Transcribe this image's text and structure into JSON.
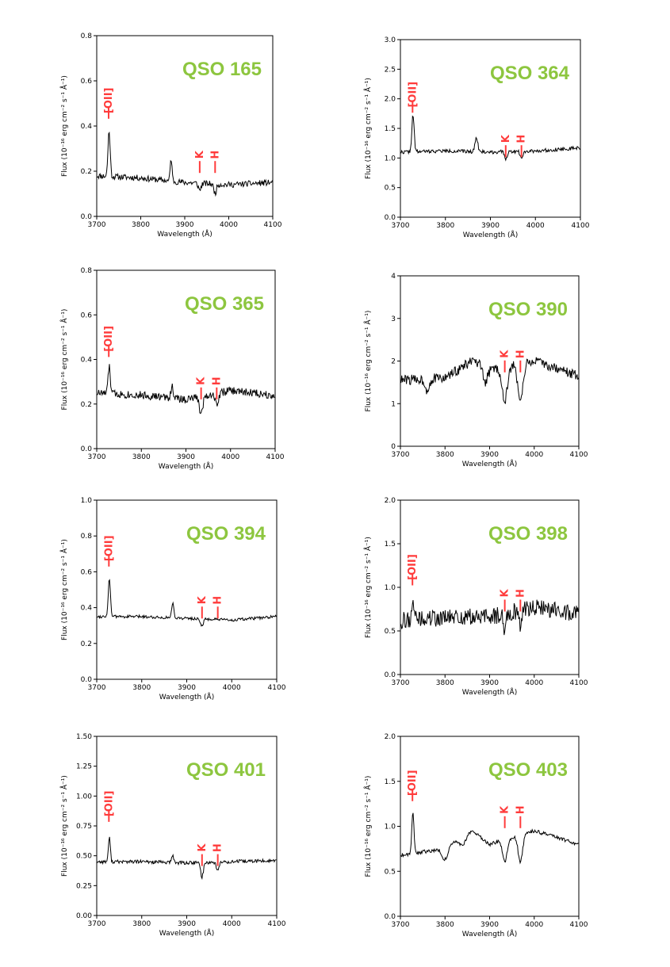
{
  "colors": {
    "title": "#8dc63f",
    "marker": "#ff3b3b",
    "line": "#000000"
  },
  "chart_data": [
    {
      "type": "line",
      "title": "QSO 165",
      "xlabel": "Wavelength (Å)",
      "ylabel": "Flux (10⁻¹⁶ erg cm⁻² s⁻¹ Å⁻¹)",
      "xlim": [
        3700,
        4100
      ],
      "ylim": [
        0,
        0.8
      ],
      "xticks": [
        3700,
        3800,
        3900,
        4000,
        4100
      ],
      "yticks": [
        "0.0",
        "0.2",
        "0.4",
        "0.6",
        "0.8"
      ],
      "markers": [
        {
          "label": "[OII]",
          "x": 3727,
          "y": 0.52,
          "rotate": true
        },
        {
          "label": "K",
          "x": 3934,
          "y": 0.28,
          "rotate": true
        },
        {
          "label": "H",
          "x": 3969,
          "y": 0.28,
          "rotate": true
        }
      ],
      "spectrum": {
        "base": [
          [
            3700,
            0.18
          ],
          [
            3800,
            0.17
          ],
          [
            3900,
            0.15
          ],
          [
            4000,
            0.14
          ],
          [
            4100,
            0.15
          ]
        ],
        "noise": 0.013,
        "seed": 11,
        "features": [
          {
            "x": 3728,
            "a": 0.2,
            "w": 2.5
          },
          {
            "x": 3869,
            "a": 0.1,
            "w": 2.0
          },
          {
            "x": 3934,
            "a": -0.03,
            "w": 3.0
          },
          {
            "x": 3969,
            "a": -0.04,
            "w": 3.0
          }
        ]
      }
    },
    {
      "type": "line",
      "title": "QSO 364",
      "xlabel": "Wavelength (Å)",
      "ylabel": "Flux (10⁻¹⁶ erg cm⁻² s⁻¹ Å⁻¹)",
      "xlim": [
        3700,
        4100
      ],
      "ylim": [
        0,
        3.0
      ],
      "xticks": [
        3700,
        3800,
        3900,
        4000,
        4100
      ],
      "yticks": [
        "0.0",
        "0.5",
        "1.0",
        "1.5",
        "2.0",
        "2.5",
        "3.0"
      ],
      "markers": [
        {
          "label": "[OII]",
          "x": 3727,
          "y": 2.1,
          "rotate": true
        },
        {
          "label": "K",
          "x": 3934,
          "y": 1.35,
          "rotate": true
        },
        {
          "label": "H",
          "x": 3969,
          "y": 1.35,
          "rotate": true
        }
      ],
      "spectrum": {
        "base": [
          [
            3700,
            1.1
          ],
          [
            3800,
            1.12
          ],
          [
            3900,
            1.1
          ],
          [
            4000,
            1.12
          ],
          [
            4100,
            1.17
          ]
        ],
        "noise": 0.03,
        "seed": 22,
        "features": [
          {
            "x": 3728,
            "a": 0.62,
            "w": 2.5
          },
          {
            "x": 3869,
            "a": 0.25,
            "w": 3.0
          },
          {
            "x": 3934,
            "a": -0.12,
            "w": 3.0
          },
          {
            "x": 3969,
            "a": -0.1,
            "w": 3.0
          }
        ]
      }
    },
    {
      "type": "line",
      "title": "QSO 365",
      "xlabel": "Wavelength (Å)",
      "ylabel": "Flux (10⁻¹⁶ erg cm⁻² s⁻¹ Å⁻¹)",
      "xlim": [
        3700,
        4100
      ],
      "ylim": [
        0,
        0.8
      ],
      "xticks": [
        3700,
        3800,
        3900,
        4000,
        4100
      ],
      "yticks": [
        "0.0",
        "0.2",
        "0.4",
        "0.6",
        "0.8"
      ],
      "markers": [
        {
          "label": "[OII]",
          "x": 3727,
          "y": 0.5,
          "rotate": true
        },
        {
          "label": "K",
          "x": 3934,
          "y": 0.31,
          "rotate": true
        },
        {
          "label": "H",
          "x": 3969,
          "y": 0.31,
          "rotate": true
        }
      ],
      "spectrum": {
        "base": [
          [
            3700,
            0.25
          ],
          [
            3800,
            0.24
          ],
          [
            3900,
            0.22
          ],
          [
            4000,
            0.26
          ],
          [
            4100,
            0.24
          ]
        ],
        "noise": 0.018,
        "seed": 33,
        "features": [
          {
            "x": 3728,
            "a": 0.12,
            "w": 2.5
          },
          {
            "x": 3869,
            "a": 0.05,
            "w": 3.0
          },
          {
            "x": 3934,
            "a": -0.08,
            "w": 3.5
          },
          {
            "x": 3969,
            "a": -0.05,
            "w": 3.5
          }
        ]
      }
    },
    {
      "type": "line",
      "title": "QSO 390",
      "xlabel": "Wavelength (Å)",
      "ylabel": "Flux (10⁻¹⁶ erg cm⁻² s⁻¹ Å⁻¹)",
      "xlim": [
        3700,
        4100
      ],
      "ylim": [
        0,
        4
      ],
      "xticks": [
        3700,
        3800,
        3900,
        4000,
        4100
      ],
      "yticks": [
        "0",
        "1",
        "2",
        "3",
        "4"
      ],
      "markers": [
        {
          "label": "K",
          "x": 3934,
          "y": 2.2,
          "rotate": true
        },
        {
          "label": "H",
          "x": 3969,
          "y": 2.2,
          "rotate": true
        }
      ],
      "spectrum": {
        "base": [
          [
            3700,
            1.55
          ],
          [
            3800,
            1.6
          ],
          [
            3860,
            2.0
          ],
          [
            3900,
            1.8
          ],
          [
            4000,
            2.0
          ],
          [
            4100,
            1.65
          ]
        ],
        "noise": 0.12,
        "seed": 44,
        "features": [
          {
            "x": 3934,
            "a": -0.8,
            "w": 6.0
          },
          {
            "x": 3969,
            "a": -0.8,
            "w": 6.0
          },
          {
            "x": 3760,
            "a": -0.25,
            "w": 5.0
          },
          {
            "x": 3890,
            "a": -0.35,
            "w": 5.0
          }
        ]
      }
    },
    {
      "type": "line",
      "title": "QSO 394",
      "xlabel": "Wavelength (Å)",
      "ylabel": "Flux (10⁻¹⁶ erg cm⁻² s⁻¹ Å⁻¹)",
      "xlim": [
        3700,
        4100
      ],
      "ylim": [
        0,
        1.0
      ],
      "xticks": [
        3700,
        3800,
        3900,
        4000,
        4100
      ],
      "yticks": [
        "0.0",
        "0.2",
        "0.4",
        "0.6",
        "0.8",
        "1.0"
      ],
      "markers": [
        {
          "label": "[OII]",
          "x": 3727,
          "y": 0.74,
          "rotate": true
        },
        {
          "label": "K",
          "x": 3934,
          "y": 0.45,
          "rotate": true
        },
        {
          "label": "H",
          "x": 3969,
          "y": 0.45,
          "rotate": true
        }
      ],
      "spectrum": {
        "base": [
          [
            3700,
            0.35
          ],
          [
            3800,
            0.35
          ],
          [
            3900,
            0.34
          ],
          [
            4000,
            0.33
          ],
          [
            4100,
            0.35
          ]
        ],
        "noise": 0.008,
        "seed": 55,
        "features": [
          {
            "x": 3728,
            "a": 0.21,
            "w": 2.5
          },
          {
            "x": 3869,
            "a": 0.08,
            "w": 2.5
          },
          {
            "x": 3934,
            "a": -0.04,
            "w": 3.0
          }
        ]
      }
    },
    {
      "type": "line",
      "title": "QSO 398",
      "xlabel": "Wavelength (Å)",
      "ylabel": "Flux (10⁻¹⁶ erg cm⁻² s⁻¹ Å⁻¹)",
      "xlim": [
        3700,
        4100
      ],
      "ylim": [
        0,
        2.0
      ],
      "xticks": [
        3700,
        3800,
        3900,
        4000,
        4100
      ],
      "yticks": [
        "0.0",
        "0.5",
        "1.0",
        "1.5",
        "2.0"
      ],
      "markers": [
        {
          "label": "[OII]",
          "x": 3727,
          "y": 1.25,
          "rotate": true
        },
        {
          "label": "K",
          "x": 3934,
          "y": 0.95,
          "rotate": true
        },
        {
          "label": "H",
          "x": 3969,
          "y": 0.95,
          "rotate": true
        }
      ],
      "spectrum": {
        "base": [
          [
            3700,
            0.62
          ],
          [
            3800,
            0.65
          ],
          [
            3900,
            0.66
          ],
          [
            4000,
            0.78
          ],
          [
            4100,
            0.7
          ]
        ],
        "noise": 0.1,
        "seed": 66,
        "features": [
          {
            "x": 3728,
            "a": 0.3,
            "w": 2.0
          },
          {
            "x": 3934,
            "a": -0.2,
            "w": 3.0
          },
          {
            "x": 3969,
            "a": -0.2,
            "w": 3.0
          }
        ]
      }
    },
    {
      "type": "line",
      "title": "QSO 401",
      "xlabel": "Wavelength (Å)",
      "ylabel": "Flux (10⁻¹⁶ erg cm⁻² s⁻¹ Å⁻¹)",
      "xlim": [
        3700,
        4100
      ],
      "ylim": [
        0,
        1.5
      ],
      "xticks": [
        3700,
        3800,
        3900,
        4000,
        4100
      ],
      "yticks": [
        "0.00",
        "0.25",
        "0.50",
        "0.75",
        "1.00",
        "1.25",
        "1.50"
      ],
      "markers": [
        {
          "label": "[OII]",
          "x": 3727,
          "y": 0.95,
          "rotate": true
        },
        {
          "label": "K",
          "x": 3934,
          "y": 0.58,
          "rotate": true
        },
        {
          "label": "H",
          "x": 3969,
          "y": 0.58,
          "rotate": true
        }
      ],
      "spectrum": {
        "base": [
          [
            3700,
            0.45
          ],
          [
            3800,
            0.45
          ],
          [
            3900,
            0.44
          ],
          [
            4000,
            0.45
          ],
          [
            4100,
            0.46
          ]
        ],
        "noise": 0.015,
        "seed": 77,
        "features": [
          {
            "x": 3728,
            "a": 0.2,
            "w": 2.2
          },
          {
            "x": 3869,
            "a": 0.06,
            "w": 2.2
          },
          {
            "x": 3934,
            "a": -0.12,
            "w": 3.0
          },
          {
            "x": 3969,
            "a": -0.07,
            "w": 3.0
          }
        ]
      }
    },
    {
      "type": "line",
      "title": "QSO 403",
      "xlabel": "Wavelength (Å)",
      "ylabel": "Flux (10⁻¹⁶ erg cm⁻² s⁻¹ Å⁻¹)",
      "xlim": [
        3700,
        4100
      ],
      "ylim": [
        0,
        2.0
      ],
      "xticks": [
        3700,
        3800,
        3900,
        4000,
        4100
      ],
      "yticks": [
        "0.0",
        "0.5",
        "1.0",
        "1.5",
        "2.0"
      ],
      "markers": [
        {
          "label": "[OII]",
          "x": 3727,
          "y": 1.5,
          "rotate": true
        },
        {
          "label": "K",
          "x": 3934,
          "y": 1.2,
          "rotate": true
        },
        {
          "label": "H",
          "x": 3969,
          "y": 1.2,
          "rotate": true
        }
      ],
      "spectrum": {
        "base": [
          [
            3700,
            0.68
          ],
          [
            3800,
            0.75
          ],
          [
            3860,
            0.95
          ],
          [
            3900,
            0.8
          ],
          [
            4000,
            0.95
          ],
          [
            4100,
            0.8
          ]
        ],
        "noise": 0.02,
        "seed": 88,
        "features": [
          {
            "x": 3728,
            "a": 0.45,
            "w": 2.5
          },
          {
            "x": 3934,
            "a": -0.25,
            "w": 5.0
          },
          {
            "x": 3969,
            "a": -0.3,
            "w": 5.0
          },
          {
            "x": 3800,
            "a": -0.12,
            "w": 6.0
          },
          {
            "x": 3840,
            "a": -0.1,
            "w": 6.0
          }
        ]
      }
    }
  ]
}
